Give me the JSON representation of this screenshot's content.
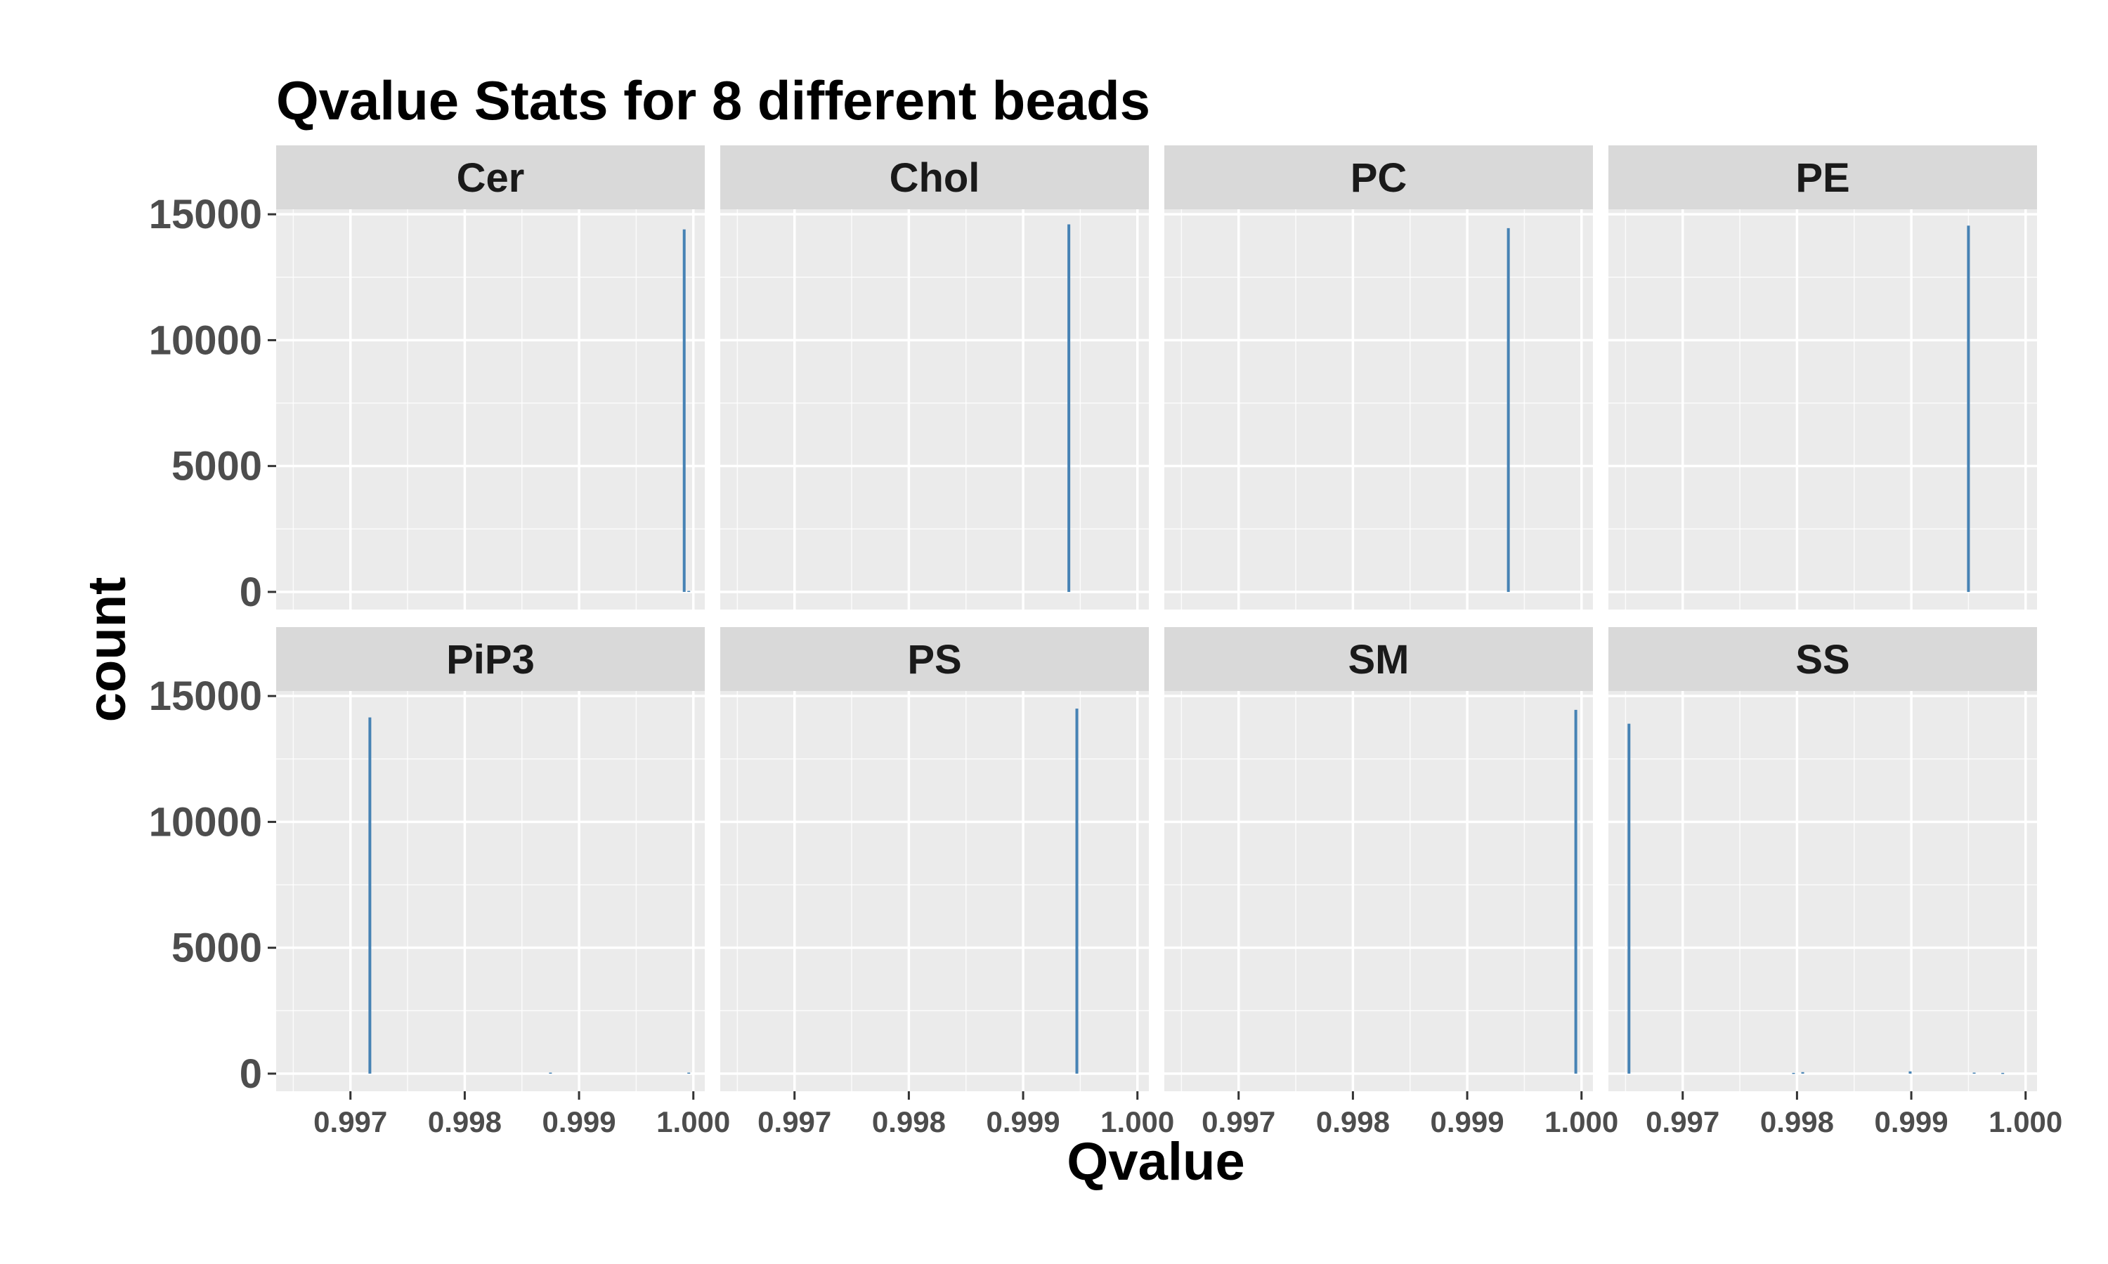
{
  "chart_data": {
    "type": "histogram",
    "title": "Qvalue Stats for 8 different beads",
    "xlabel": "Qvalue",
    "ylabel": "count",
    "layout": "facet grid 2 rows x 4 columns",
    "xlim": [
      0.99635,
      1.0001
    ],
    "ylim": [
      -700,
      15200
    ],
    "x_ticks": [
      0.997,
      0.998,
      0.999,
      1.0
    ],
    "x_tick_labels": [
      "0.997",
      "0.998",
      "0.999",
      "1.000"
    ],
    "y_ticks": [
      0,
      5000,
      10000,
      15000
    ],
    "y_tick_labels": [
      "0",
      "5000",
      "10000",
      "15000"
    ],
    "grid": true,
    "bar_color": "#4682b4",
    "panel_background": "#ebebeb",
    "strip_background": "#d9d9d9",
    "panels": [
      {
        "name": "Cer",
        "bins": [
          {
            "x": 0.99992,
            "count": 14400
          },
          {
            "x": 0.99996,
            "count": 40
          }
        ]
      },
      {
        "name": "Chol",
        "bins": [
          {
            "x": 0.9994,
            "count": 14600
          }
        ]
      },
      {
        "name": "PC",
        "bins": [
          {
            "x": 0.99936,
            "count": 14450
          }
        ]
      },
      {
        "name": "PE",
        "bins": [
          {
            "x": 0.9995,
            "count": 14550
          }
        ]
      },
      {
        "name": "PiP3",
        "bins": [
          {
            "x": 0.99717,
            "count": 14150
          },
          {
            "x": 0.99875,
            "count": 40
          },
          {
            "x": 0.99996,
            "count": 40
          }
        ]
      },
      {
        "name": "PS",
        "bins": [
          {
            "x": 0.99947,
            "count": 14500
          }
        ]
      },
      {
        "name": "SM",
        "bins": [
          {
            "x": 0.99995,
            "count": 14450
          }
        ]
      },
      {
        "name": "SS",
        "bins": [
          {
            "x": 0.99653,
            "count": 13900
          },
          {
            "x": 0.99797,
            "count": 30
          },
          {
            "x": 0.99805,
            "count": 60
          },
          {
            "x": 0.99899,
            "count": 90
          },
          {
            "x": 0.99955,
            "count": 40
          },
          {
            "x": 0.9998,
            "count": 30
          }
        ]
      }
    ]
  }
}
